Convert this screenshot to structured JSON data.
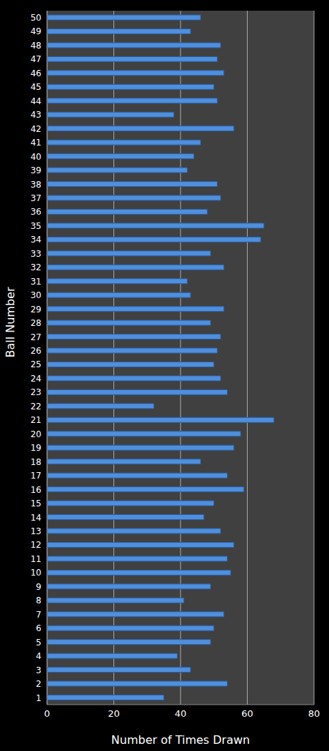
{
  "chart_data": {
    "type": "bar",
    "orientation": "horizontal",
    "x_label": "Number of Times Drawn",
    "y_label": "Ball Number",
    "categories": [
      "1",
      "2",
      "3",
      "4",
      "5",
      "6",
      "7",
      "8",
      "9",
      "10",
      "11",
      "12",
      "13",
      "14",
      "15",
      "16",
      "17",
      "18",
      "19",
      "20",
      "21",
      "22",
      "23",
      "24",
      "25",
      "26",
      "27",
      "28",
      "29",
      "30",
      "31",
      "32",
      "33",
      "34",
      "35",
      "36",
      "37",
      "38",
      "39",
      "40",
      "41",
      "42",
      "43",
      "44",
      "45",
      "46",
      "47",
      "48",
      "49",
      "50"
    ],
    "values": [
      35,
      54,
      43,
      39,
      49,
      50,
      53,
      41,
      49,
      55,
      54,
      56,
      52,
      47,
      50,
      59,
      54,
      46,
      56,
      58,
      68,
      32,
      54,
      52,
      50,
      51,
      52,
      49,
      53,
      43,
      42,
      53,
      49,
      64,
      65,
      48,
      52,
      51,
      42,
      44,
      46,
      56,
      38,
      51,
      50,
      53,
      51,
      52,
      43,
      46
    ],
    "color": "#4f8fdc",
    "xlim": [
      0,
      80
    ],
    "xticks": [
      0,
      20,
      40,
      60,
      80
    ],
    "grid": true
  }
}
